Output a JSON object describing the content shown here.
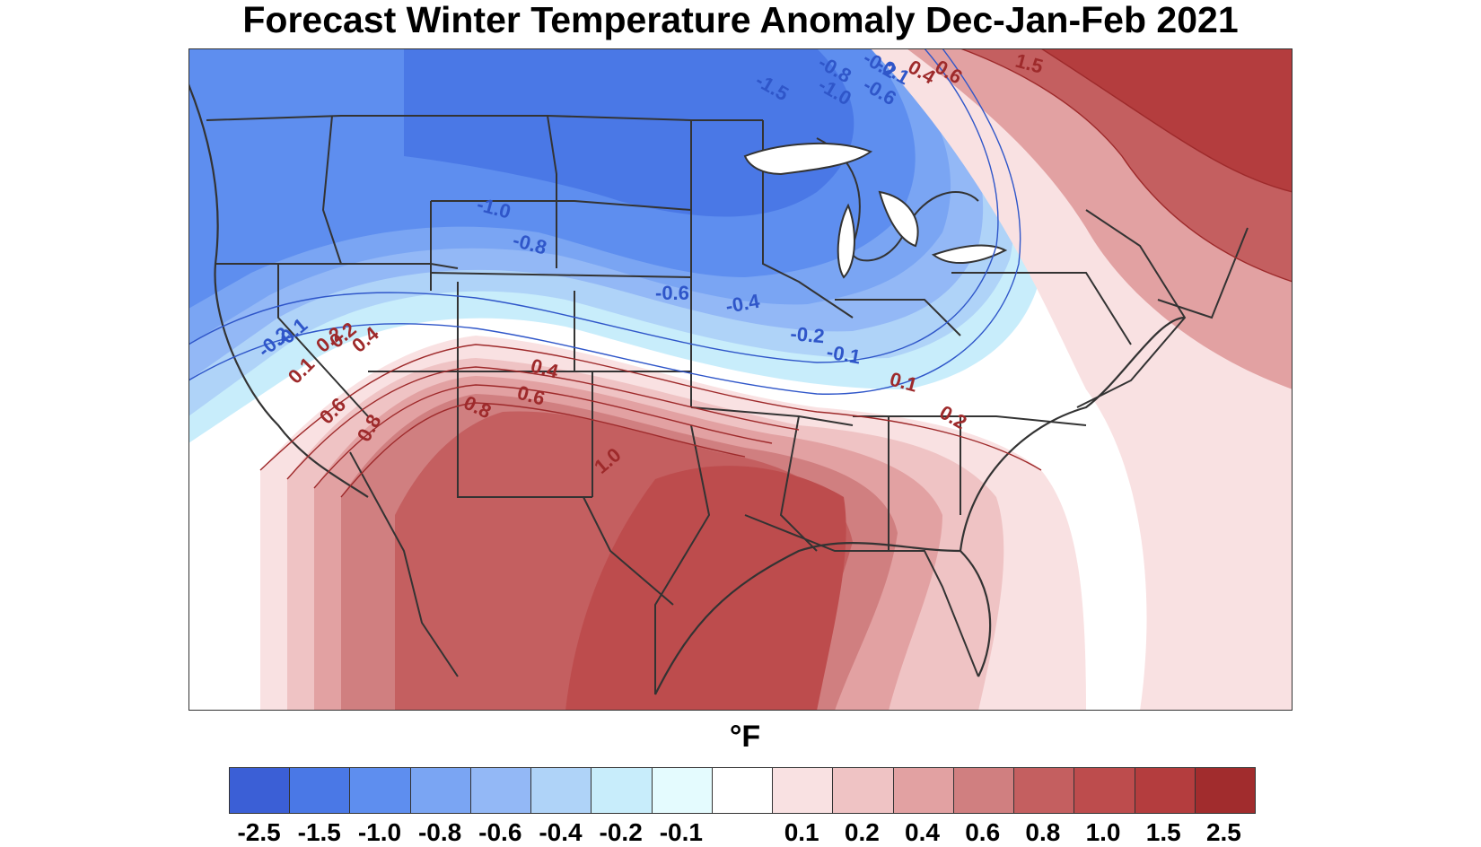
{
  "title": "Forecast Winter Temperature Anomaly Dec-Jan-Feb 2021",
  "units": "°F",
  "legend": {
    "colors": [
      "#3b5fd6",
      "#4a78e6",
      "#5e8eef",
      "#7aa5f3",
      "#93b8f6",
      "#afd3f8",
      "#c8edfb",
      "#e4fbfe",
      "#ffffff",
      "#f9e1e2",
      "#efc3c4",
      "#e2a1a2",
      "#d07f80",
      "#c45f60",
      "#bd4c4d",
      "#b43d3e",
      "#a12c2d"
    ],
    "labels": [
      "-2.5",
      "-1.5",
      "-1.0",
      "-0.8",
      "-0.6",
      "-0.4",
      "-0.2",
      "-0.1",
      "",
      "0.1",
      "0.2",
      "0.4",
      "0.6",
      "0.8",
      "1.0",
      "1.5",
      "2.5"
    ]
  },
  "contour_labels": {
    "cold": [
      "-1.5",
      "-0.8",
      "-1.0",
      "-0.6",
      "-0.1",
      "-0.2",
      "-1.0",
      "-0.8",
      "-0.6",
      "-0.4",
      "-0.2",
      "-0.1",
      "-0.2",
      "-0.1"
    ],
    "warm": [
      "1.5",
      "0.4",
      "0.6",
      "0.2",
      "0.1",
      "0.2",
      "0.4",
      "0.4",
      "0.6",
      "0.8",
      "0.6",
      "0.8",
      "1.0",
      "0.1",
      "0.2"
    ]
  }
}
